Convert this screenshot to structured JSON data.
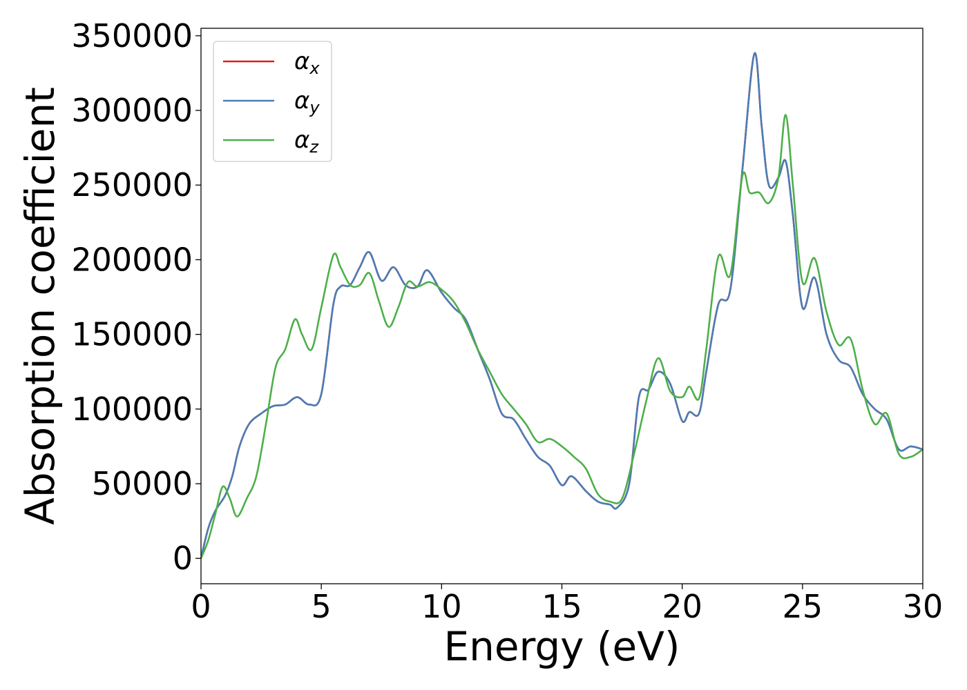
{
  "chart_data": {
    "type": "line",
    "title": "",
    "xlabel": "Energy (eV)",
    "ylabel": "Absorption coefficient",
    "xlim": [
      0,
      30
    ],
    "ylim": [
      -17000,
      355000
    ],
    "xticks": [
      0,
      5,
      10,
      15,
      20,
      25,
      30
    ],
    "yticks": [
      0,
      50000,
      100000,
      150000,
      200000,
      250000,
      300000,
      350000
    ],
    "grid": false,
    "legend": "top-left",
    "series": [
      {
        "name": "α",
        "sub": "x",
        "color": "#e41a1c",
        "x": [
          0,
          0.3,
          0.6,
          1.0,
          1.3,
          1.6,
          2.0,
          2.5,
          3.0,
          3.5,
          4.0,
          4.5,
          5.0,
          5.5,
          5.8,
          6.2,
          6.6,
          7.0,
          7.5,
          8.0,
          8.5,
          9.0,
          9.4,
          10.0,
          10.5,
          11.0,
          11.5,
          12.0,
          12.5,
          13.0,
          13.5,
          14.0,
          14.5,
          15.0,
          15.4,
          16.0,
          16.5,
          17.0,
          17.3,
          17.8,
          18.2,
          18.6,
          19.0,
          19.5,
          20.0,
          20.3,
          20.7,
          21.0,
          21.5,
          22.0,
          22.5,
          23.0,
          23.3,
          23.6,
          24.0,
          24.3,
          24.6,
          25.0,
          25.5,
          26.0,
          26.5,
          27.0,
          27.5,
          28.0,
          28.5,
          29.0,
          29.5,
          30.0
        ],
        "values": [
          0,
          20000,
          32000,
          42000,
          55000,
          75000,
          90000,
          97000,
          102000,
          103000,
          108000,
          103000,
          110000,
          170000,
          182000,
          183000,
          195000,
          205000,
          186000,
          195000,
          183000,
          182000,
          193000,
          178000,
          168000,
          160000,
          140000,
          120000,
          97000,
          93000,
          80000,
          68000,
          62000,
          49000,
          55000,
          45000,
          38000,
          36000,
          34000,
          50000,
          108000,
          113000,
          125000,
          117000,
          92000,
          98000,
          97000,
          125000,
          170000,
          180000,
          260000,
          338000,
          290000,
          250000,
          255000,
          266000,
          230000,
          168000,
          188000,
          150000,
          133000,
          128000,
          110000,
          100000,
          93000,
          73000,
          75000,
          73000
        ]
      },
      {
        "name": "α",
        "sub": "y",
        "color": "#4a7db5",
        "x": [
          0,
          0.3,
          0.6,
          1.0,
          1.3,
          1.6,
          2.0,
          2.5,
          3.0,
          3.5,
          4.0,
          4.5,
          5.0,
          5.5,
          5.8,
          6.2,
          6.6,
          7.0,
          7.5,
          8.0,
          8.5,
          9.0,
          9.4,
          10.0,
          10.5,
          11.0,
          11.5,
          12.0,
          12.5,
          13.0,
          13.5,
          14.0,
          14.5,
          15.0,
          15.4,
          16.0,
          16.5,
          17.0,
          17.3,
          17.8,
          18.2,
          18.6,
          19.0,
          19.5,
          20.0,
          20.3,
          20.7,
          21.0,
          21.5,
          22.0,
          22.5,
          23.0,
          23.3,
          23.6,
          24.0,
          24.3,
          24.6,
          25.0,
          25.5,
          26.0,
          26.5,
          27.0,
          27.5,
          28.0,
          28.5,
          29.0,
          29.5,
          30.0
        ],
        "values": [
          0,
          20000,
          32000,
          42000,
          55000,
          75000,
          90000,
          97000,
          102000,
          103000,
          108000,
          103000,
          110000,
          170000,
          182000,
          183000,
          195000,
          205000,
          186000,
          195000,
          183000,
          182000,
          193000,
          178000,
          168000,
          160000,
          140000,
          120000,
          97000,
          93000,
          80000,
          68000,
          62000,
          49000,
          55000,
          45000,
          38000,
          36000,
          34000,
          50000,
          108000,
          113000,
          125000,
          117000,
          92000,
          98000,
          97000,
          125000,
          170000,
          180000,
          260000,
          338000,
          290000,
          250000,
          255000,
          266000,
          230000,
          168000,
          188000,
          150000,
          133000,
          128000,
          110000,
          100000,
          93000,
          73000,
          75000,
          73000
        ]
      },
      {
        "name": "α",
        "sub": "z",
        "color": "#4daf4a",
        "x": [
          0,
          0.3,
          0.6,
          0.9,
          1.2,
          1.5,
          1.9,
          2.3,
          2.7,
          3.1,
          3.5,
          3.9,
          4.2,
          4.6,
          5.0,
          5.5,
          5.8,
          6.2,
          6.6,
          7.0,
          7.4,
          7.8,
          8.2,
          8.6,
          9.0,
          9.5,
          10.0,
          10.5,
          11.0,
          11.5,
          12.0,
          12.5,
          13.0,
          13.5,
          14.0,
          14.5,
          15.0,
          15.5,
          16.0,
          16.5,
          17.0,
          17.5,
          18.0,
          18.5,
          19.0,
          19.5,
          20.0,
          20.3,
          20.7,
          21.0,
          21.5,
          22.0,
          22.5,
          22.8,
          23.2,
          23.6,
          24.0,
          24.3,
          24.6,
          25.0,
          25.5,
          26.0,
          26.5,
          27.0,
          27.5,
          28.0,
          28.5,
          29.0,
          29.5,
          30.0
        ],
        "values": [
          0,
          12000,
          30000,
          48000,
          40000,
          28000,
          40000,
          55000,
          90000,
          128000,
          140000,
          160000,
          150000,
          140000,
          168000,
          203000,
          195000,
          183000,
          183000,
          191000,
          172000,
          155000,
          168000,
          185000,
          182000,
          185000,
          180000,
          172000,
          158000,
          140000,
          125000,
          110000,
          100000,
          90000,
          78000,
          80000,
          75000,
          68000,
          60000,
          43000,
          38000,
          40000,
          70000,
          105000,
          134000,
          112000,
          108000,
          115000,
          107000,
          140000,
          202000,
          190000,
          256000,
          245000,
          245000,
          238000,
          255000,
          297000,
          250000,
          185000,
          201000,
          165000,
          143000,
          147000,
          113000,
          90000,
          97000,
          70000,
          68000,
          73000
        ]
      }
    ]
  }
}
